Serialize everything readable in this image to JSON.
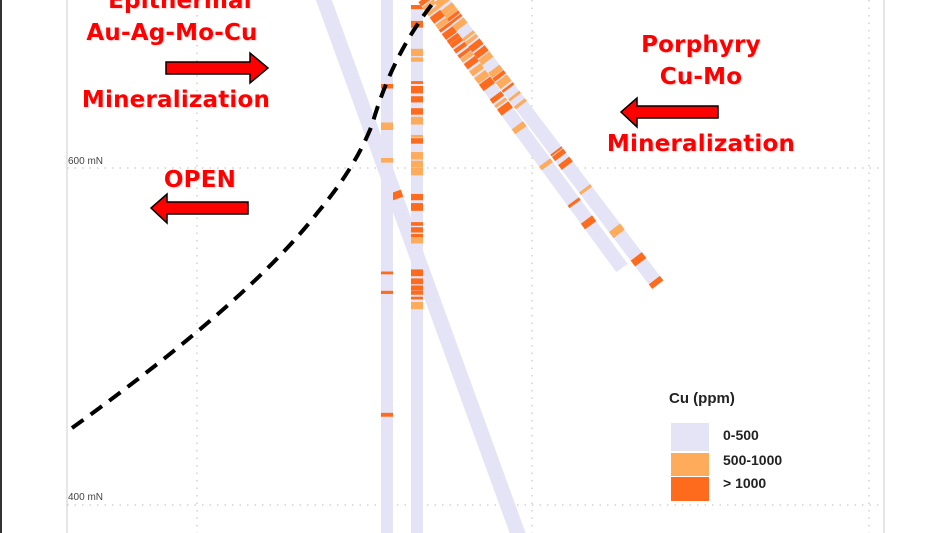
{
  "labels": {
    "epithermal_line1": "Epithermal",
    "epithermal_line2": "Au-Ag-Mo-Cu",
    "epithermal_line3": "Mineralization",
    "open": "OPEN",
    "porphyry_line1": "Porphyry",
    "porphyry_line2": "Cu-Mo",
    "porphyry_line3": "Mineralization"
  },
  "axis": {
    "tick_600": "600 mN",
    "tick_400": "400 mN"
  },
  "legend": {
    "title": "Cu (ppm)",
    "items": [
      {
        "label": "0-500",
        "color": "#e4e4f6"
      },
      {
        "label": "500-1000",
        "color": "#ffab5c"
      },
      {
        "label": "> 1000",
        "color": "#ff6b1c"
      }
    ]
  },
  "colors": {
    "text_accent": "#ff0000",
    "arrow_fill": "#ff0000",
    "arrow_outline": "#000000",
    "contact_line": "#000000",
    "grid": "#bbbbbb"
  }
}
